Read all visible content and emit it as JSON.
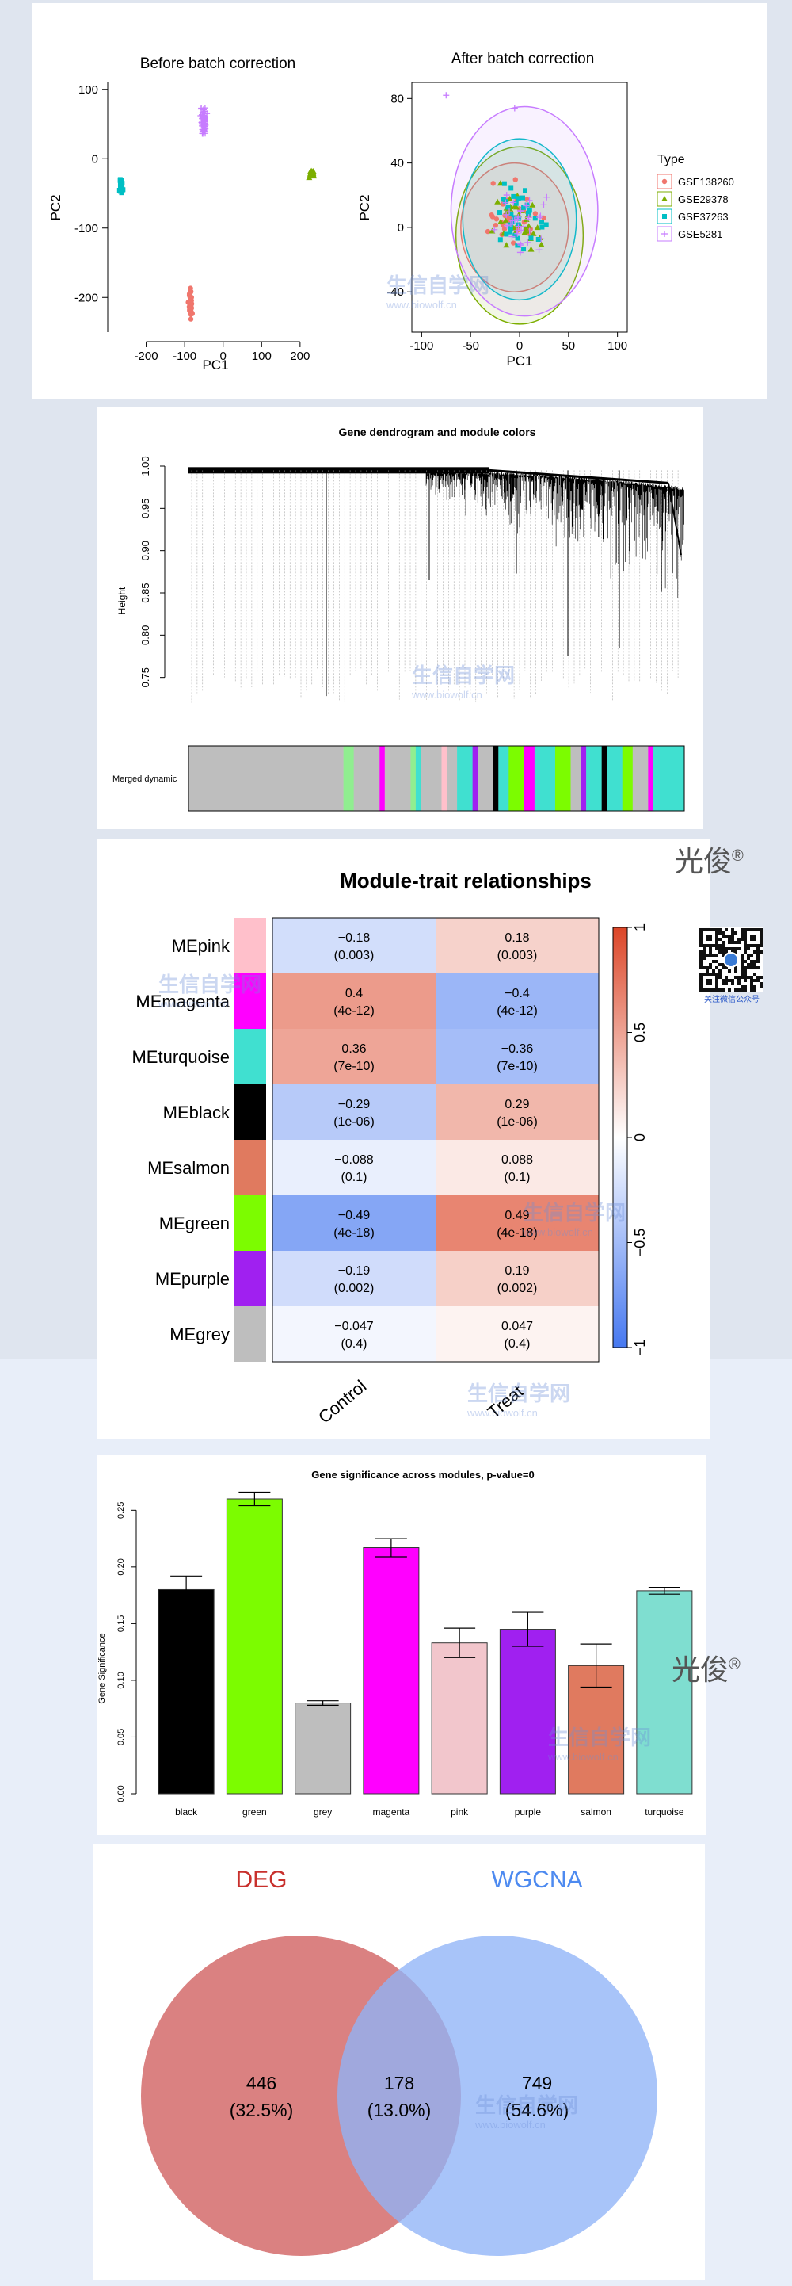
{
  "chart_data": [
    {
      "type": "scatter",
      "title": "Before batch correction",
      "xlabel": "PC1",
      "ylabel": "PC2",
      "xlim": [
        -300,
        260
      ],
      "ylim": [
        -250,
        110
      ],
      "xticks": [
        -200,
        -100,
        0,
        100,
        200
      ],
      "yticks": [
        -200,
        -100,
        0,
        100
      ],
      "clusters": [
        {
          "series": "GSE138260",
          "center": [
            -85,
            -210
          ],
          "spread": [
            6,
            28
          ],
          "n": 60
        },
        {
          "series": "GSE29378",
          "center": [
            230,
            -22
          ],
          "spread": [
            8,
            6
          ],
          "n": 40
        },
        {
          "series": "GSE37263",
          "center": [
            -265,
            -40
          ],
          "spread": [
            6,
            16
          ],
          "n": 40
        },
        {
          "series": "GSE5281",
          "center": [
            -50,
            55
          ],
          "spread": [
            10,
            28
          ],
          "n": 70
        }
      ]
    },
    {
      "type": "scatter",
      "title": "After batch correction",
      "xlabel": "PC1",
      "ylabel": "PC2",
      "xlim": [
        -110,
        110
      ],
      "ylim": [
        -65,
        90
      ],
      "xticks": [
        -100,
        -50,
        0,
        50,
        100
      ],
      "yticks": [
        -40,
        0,
        40,
        80
      ],
      "legend_title": "Type",
      "legend_position": "right",
      "series": [
        {
          "name": "GSE138260",
          "color": "#f0766d",
          "shape": "circle"
        },
        {
          "name": "GSE29378",
          "color": "#7cae00",
          "shape": "triangle"
        },
        {
          "name": "GSE37263",
          "color": "#00bfc4",
          "shape": "square"
        },
        {
          "name": "GSE5281",
          "color": "#c77cff",
          "shape": "plus"
        }
      ],
      "ellipses": [
        {
          "series": "GSE138260",
          "center": [
            -5,
            0
          ],
          "radii": [
            55,
            40
          ]
        },
        {
          "series": "GSE29378",
          "center": [
            0,
            -5
          ],
          "radii": [
            65,
            55
          ]
        },
        {
          "series": "GSE37263",
          "center": [
            0,
            5
          ],
          "radii": [
            58,
            50
          ]
        },
        {
          "series": "GSE5281",
          "center": [
            5,
            10
          ],
          "radii": [
            75,
            65
          ]
        }
      ]
    },
    {
      "type": "dendrogram",
      "title": "Gene dendrogram and module colors",
      "ylabel": "Height",
      "ylim": [
        0.7,
        1.0
      ],
      "yticks": [
        "0.75",
        "0.80",
        "0.85",
        "0.90",
        "0.95",
        "1.00"
      ],
      "color_bar_label": "Merged dynamic",
      "module_bar": [
        {
          "color": "#bebebe",
          "w": 0.3
        },
        {
          "color": "#90ee90",
          "w": 0.02
        },
        {
          "color": "#bebebe",
          "w": 0.05
        },
        {
          "color": "#ff00ff",
          "w": 0.01
        },
        {
          "color": "#bebebe",
          "w": 0.05
        },
        {
          "color": "#90ee90",
          "w": 0.01
        },
        {
          "color": "#40e0d0",
          "w": 0.01
        },
        {
          "color": "#bebebe",
          "w": 0.04
        },
        {
          "color": "#ffc0cb",
          "w": 0.01
        },
        {
          "color": "#bebebe",
          "w": 0.02
        },
        {
          "color": "#40e0d0",
          "w": 0.03
        },
        {
          "color": "#a020f0",
          "w": 0.01
        },
        {
          "color": "#bebebe",
          "w": 0.03
        },
        {
          "color": "#000000",
          "w": 0.01
        },
        {
          "color": "#40e0d0",
          "w": 0.02
        },
        {
          "color": "#7cfc00",
          "w": 0.03
        },
        {
          "color": "#ff00ff",
          "w": 0.02
        },
        {
          "color": "#40e0d0",
          "w": 0.04
        },
        {
          "color": "#7cfc00",
          "w": 0.03
        },
        {
          "color": "#bebebe",
          "w": 0.02
        },
        {
          "color": "#a020f0",
          "w": 0.01
        },
        {
          "color": "#40e0d0",
          "w": 0.03
        },
        {
          "color": "#000000",
          "w": 0.01
        },
        {
          "color": "#40e0d0",
          "w": 0.03
        },
        {
          "color": "#7cfc00",
          "w": 0.02
        },
        {
          "color": "#bebebe",
          "w": 0.03
        },
        {
          "color": "#ff00ff",
          "w": 0.01
        },
        {
          "color": "#40e0d0",
          "w": 0.06
        }
      ]
    },
    {
      "type": "heatmap",
      "title": "Module-trait relationships",
      "columns": [
        "Control",
        "Treat"
      ],
      "rows": [
        {
          "name": "MEpink",
          "color": "#ffc0cb",
          "values": [
            -0.18,
            0.18
          ],
          "labels": [
            "-0.18",
            "0.18"
          ],
          "pvalues": [
            "(0.003)",
            "(0.003)"
          ]
        },
        {
          "name": "MEmagenta",
          "color": "#ff00ff",
          "values": [
            0.4,
            -0.4
          ],
          "labels": [
            "0.4",
            "-0.4"
          ],
          "pvalues": [
            "(4e-12)",
            "(4e-12)"
          ]
        },
        {
          "name": "MEturquoise",
          "color": "#40e0d0",
          "values": [
            0.36,
            -0.36
          ],
          "labels": [
            "0.36",
            "-0.36"
          ],
          "pvalues": [
            "(7e-10)",
            "(7e-10)"
          ]
        },
        {
          "name": "MEblack",
          "color": "#000000",
          "values": [
            -0.29,
            0.29
          ],
          "labels": [
            "-0.29",
            "0.29"
          ],
          "pvalues": [
            "(1e-06)",
            "(1e-06)"
          ]
        },
        {
          "name": "MEsalmon",
          "color": "#e07a5f",
          "values": [
            -0.088,
            0.088
          ],
          "labels": [
            "-0.088",
            "0.088"
          ],
          "pvalues": [
            "(0.1)",
            "(0.1)"
          ]
        },
        {
          "name": "MEgreen",
          "color": "#7cfc00",
          "values": [
            -0.49,
            0.49
          ],
          "labels": [
            "-0.49",
            "0.49"
          ],
          "pvalues": [
            "(4e-18)",
            "(4e-18)"
          ]
        },
        {
          "name": "MEpurple",
          "color": "#a020f0",
          "values": [
            -0.19,
            0.19
          ],
          "labels": [
            "-0.19",
            "0.19"
          ],
          "pvalues": [
            "(0.002)",
            "(0.002)"
          ]
        },
        {
          "name": "MEgrey",
          "color": "#bebebe",
          "values": [
            -0.047,
            0.047
          ],
          "labels": [
            "-0.047",
            "0.047"
          ],
          "pvalues": [
            "(0.4)",
            "(0.4)"
          ]
        }
      ],
      "colorbar_ticks": [
        "1",
        "0.5",
        "0",
        "-0.5",
        "-1"
      ],
      "colorbar_range": [
        -1,
        1
      ]
    },
    {
      "type": "bar",
      "title": "Gene significance across modules, p-value=0",
      "xlabel": "",
      "ylabel": "Gene Significance",
      "ylim": [
        0,
        0.26
      ],
      "yticks": [
        "0.00",
        "0.05",
        "0.10",
        "0.15",
        "0.20",
        "0.25"
      ],
      "categories": [
        "black",
        "green",
        "grey",
        "magenta",
        "pink",
        "purple",
        "salmon",
        "turquoise"
      ],
      "values": [
        0.18,
        0.26,
        0.08,
        0.217,
        0.133,
        0.145,
        0.113,
        0.179
      ],
      "errors": [
        0.012,
        0.006,
        0.002,
        0.008,
        0.013,
        0.015,
        0.019,
        0.003
      ],
      "colors": [
        "#000000",
        "#7cfc00",
        "#bebebe",
        "#ff00ff",
        "#f2c6cc",
        "#a020f0",
        "#e07a5f",
        "#7fded0"
      ]
    },
    {
      "type": "venn",
      "sets": [
        {
          "name": "DEG",
          "color": "#d36b6b"
        },
        {
          "name": "WGCNA",
          "color": "#8fb3f7"
        }
      ],
      "regions": [
        {
          "count": "446",
          "percent": "(32.5%)"
        },
        {
          "count": "178",
          "percent": "(13.0%)"
        },
        {
          "count": "749",
          "percent": "(54.6%)"
        }
      ]
    }
  ],
  "watermarks": {
    "author": "光俊",
    "registered": "®",
    "site_cn": "生信自学网",
    "site_url": "www.biowolf.cn",
    "qr_caption": "关注微信公众号"
  }
}
